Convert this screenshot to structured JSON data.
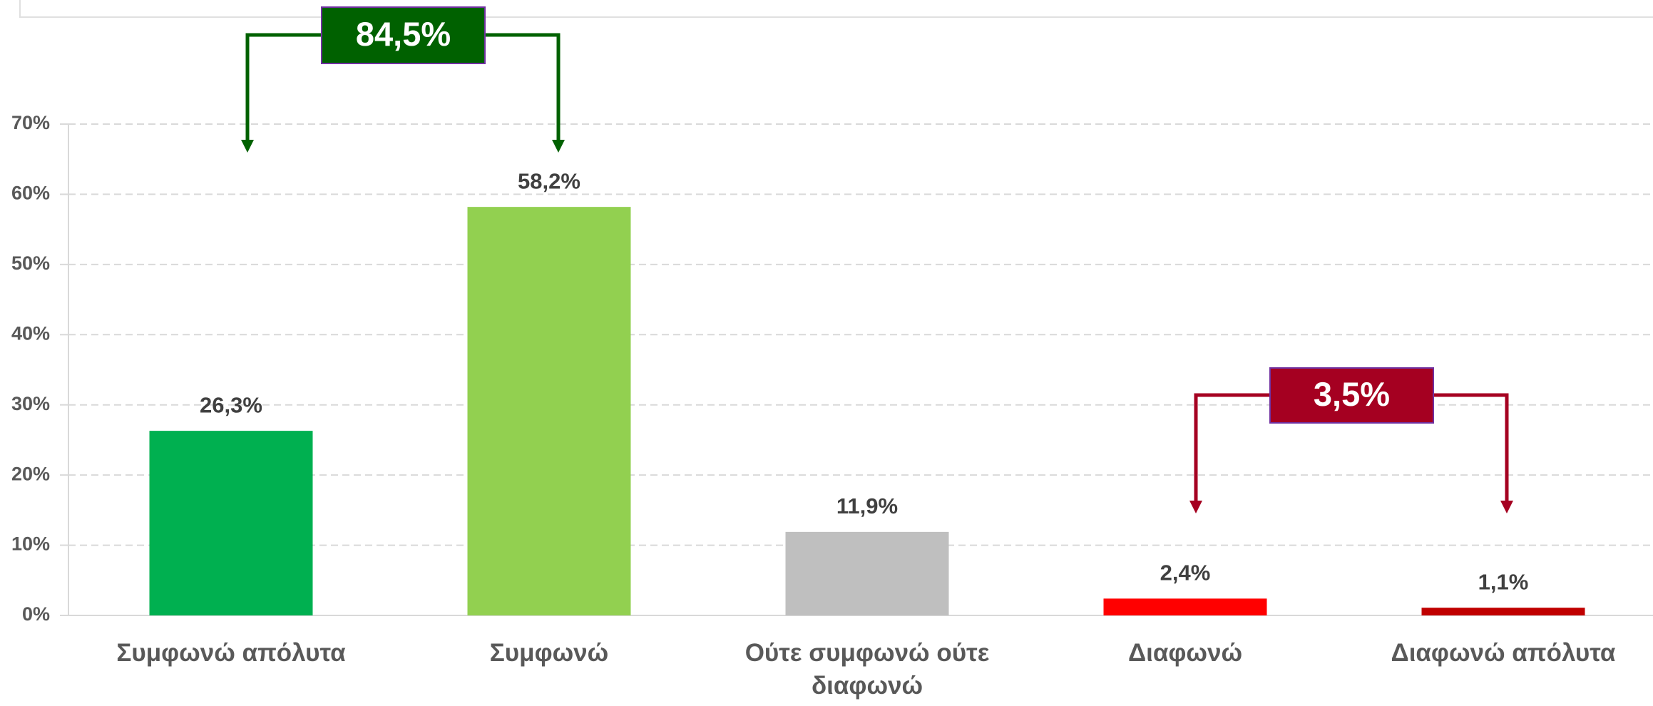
{
  "chart_data": {
    "type": "bar",
    "categories": [
      "Συμφωνώ απόλυτα",
      "Συμφωνώ",
      "Ούτε συμφωνώ ούτε διαφωνώ",
      "Διαφωνώ",
      "Διαφωνώ απόλυτα"
    ],
    "values": [
      26.3,
      58.2,
      11.9,
      2.4,
      1.1
    ],
    "value_labels": [
      "26,3%",
      "58,2%",
      "11,9%",
      "2,4%",
      "1,1%"
    ],
    "colors": [
      "#00b050",
      "#92d050",
      "#bfbfbf",
      "#ff0000",
      "#c00000"
    ],
    "ylim": [
      0,
      70
    ],
    "yticks": [
      {
        "value": 0,
        "label": "0%"
      },
      {
        "value": 10,
        "label": "10%"
      },
      {
        "value": 20,
        "label": "20%"
      },
      {
        "value": 30,
        "label": "30%"
      },
      {
        "value": 40,
        "label": "40%"
      },
      {
        "value": 50,
        "label": "50%"
      },
      {
        "value": 60,
        "label": "60%"
      },
      {
        "value": 70,
        "label": "70%"
      }
    ],
    "grid": true,
    "annotations": [
      {
        "text": "84,5%",
        "color": "#006100"
      },
      {
        "text": "3,5%",
        "color": "#a50021"
      }
    ]
  }
}
